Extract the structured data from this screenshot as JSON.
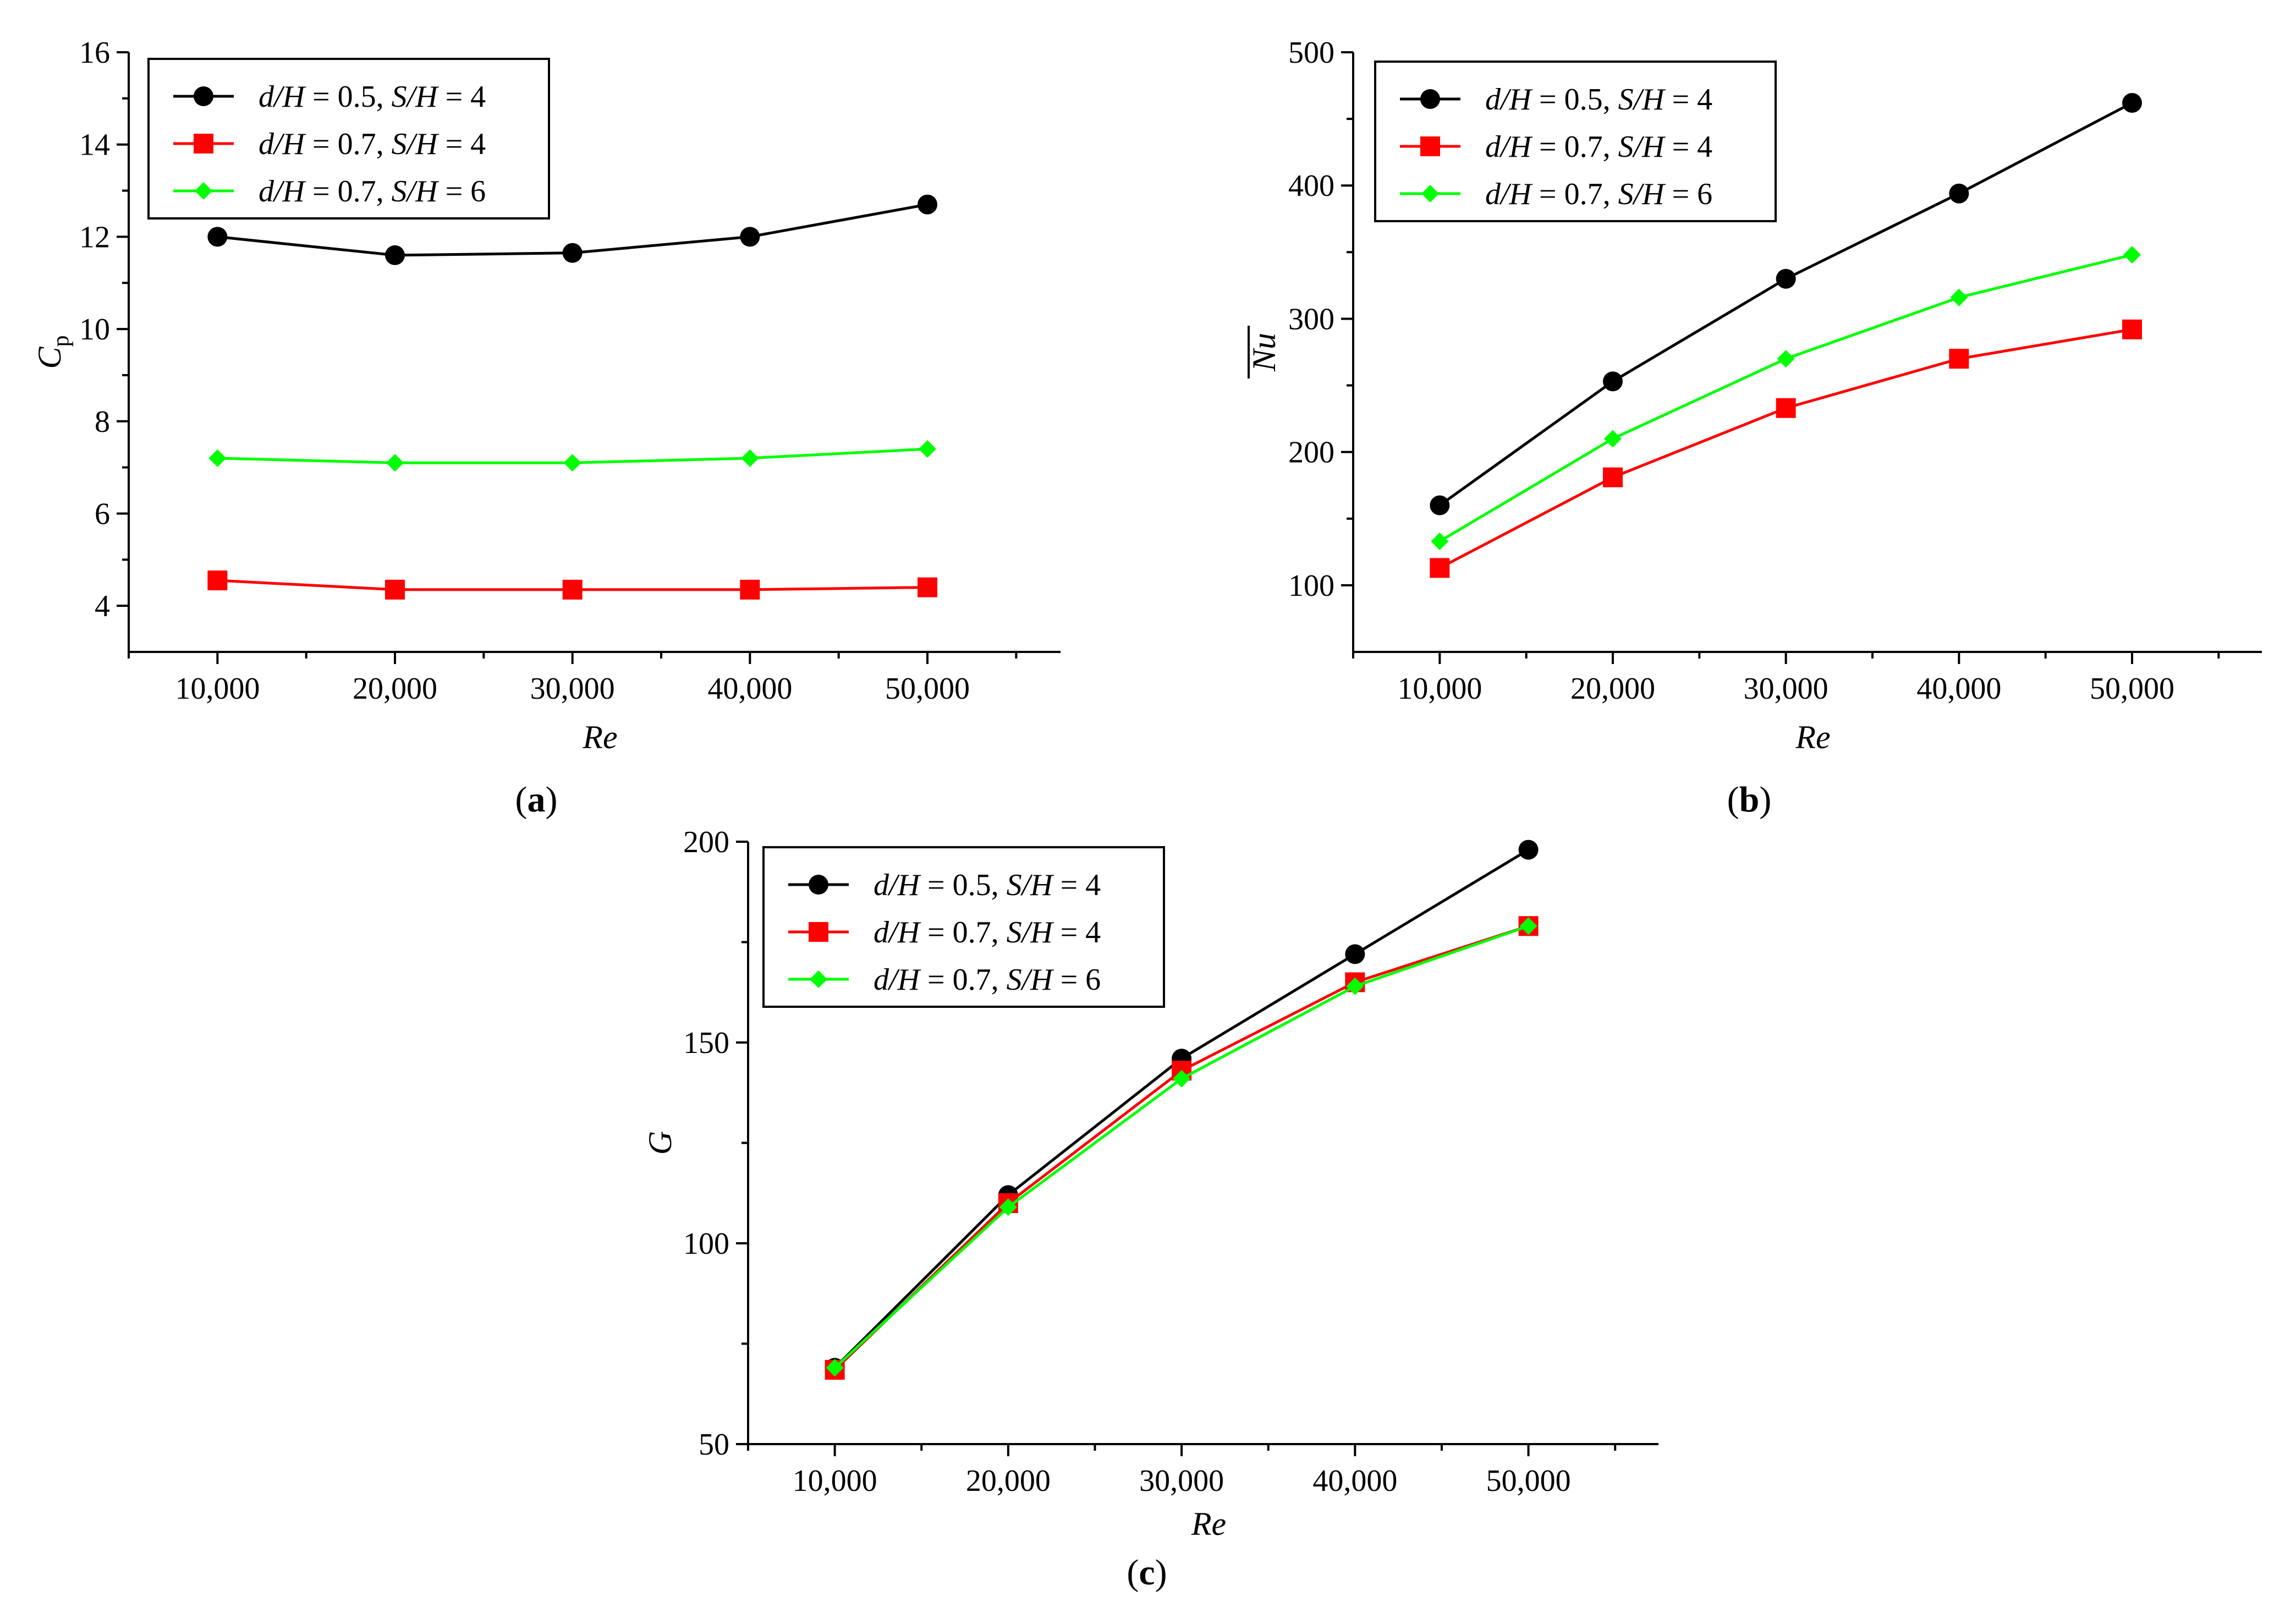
{
  "chart_data": [
    {
      "id": "a",
      "type": "line",
      "panel_label": "a",
      "categories": [
        "10,000",
        "20,000",
        "30,000",
        "40,000",
        "50,000"
      ],
      "x": [
        10000,
        20000,
        30000,
        40000,
        50000
      ],
      "xlabel": "Re",
      "ylabel_main": "C",
      "ylabel_sub": "p",
      "ylim": [
        3,
        16
      ],
      "yticks": [
        4,
        6,
        8,
        10,
        12,
        14,
        16
      ],
      "series": [
        {
          "name_parts": [
            "d/H",
            " = 0.5, ",
            "S/H",
            " = 4"
          ],
          "marker": "circle",
          "color": "#000000",
          "values": [
            12.0,
            11.6,
            11.65,
            12.0,
            12.7
          ]
        },
        {
          "name_parts": [
            "d/H",
            " = 0.7, ",
            "S/H",
            " = 4"
          ],
          "marker": "square",
          "color": "#ff0000",
          "values": [
            4.55,
            4.35,
            4.35,
            4.35,
            4.4
          ]
        },
        {
          "name_parts": [
            "d/H",
            " = 0.7, ",
            "S/H",
            " = 6"
          ],
          "marker": "diamond",
          "color": "#00ff00",
          "values": [
            7.2,
            7.1,
            7.1,
            7.2,
            7.4
          ]
        }
      ]
    },
    {
      "id": "b",
      "type": "line",
      "panel_label": "b",
      "categories": [
        "10,000",
        "20,000",
        "30,000",
        "40,000",
        "50,000"
      ],
      "x": [
        10000,
        20000,
        30000,
        40000,
        50000
      ],
      "xlabel": "Re",
      "ylabel_main": "Nu",
      "ylabel_overline": true,
      "ylim": [
        50,
        500
      ],
      "yticks": [
        100,
        200,
        300,
        400,
        500
      ],
      "series": [
        {
          "name_parts": [
            "d/H",
            " = 0.5, ",
            "S/H",
            " = 4"
          ],
          "marker": "circle",
          "color": "#000000",
          "values": [
            160,
            253,
            330,
            394,
            462
          ]
        },
        {
          "name_parts": [
            "d/H",
            " = 0.7, ",
            "S/H",
            " = 4"
          ],
          "marker": "square",
          "color": "#ff0000",
          "values": [
            113,
            181,
            233,
            270,
            292
          ]
        },
        {
          "name_parts": [
            "d/H",
            " = 0.7, ",
            "S/H",
            " = 6"
          ],
          "marker": "diamond",
          "color": "#00ff00",
          "values": [
            133,
            210,
            270,
            316,
            348
          ]
        }
      ]
    },
    {
      "id": "c",
      "type": "line",
      "panel_label": "c",
      "categories": [
        "10,000",
        "20,000",
        "30,000",
        "40,000",
        "50,000"
      ],
      "x": [
        10000,
        20000,
        30000,
        40000,
        50000
      ],
      "xlabel": "Re",
      "ylabel_main": "G",
      "ylim": [
        50,
        200
      ],
      "yticks": [
        50,
        100,
        150,
        200
      ],
      "series": [
        {
          "name_parts": [
            "d/H",
            " = 0.5, ",
            "S/H",
            " = 4"
          ],
          "marker": "circle",
          "color": "#000000",
          "values": [
            69,
            112,
            146,
            172,
            198
          ]
        },
        {
          "name_parts": [
            "d/H",
            " = 0.7, ",
            "S/H",
            " = 4"
          ],
          "marker": "square",
          "color": "#ff0000",
          "values": [
            68.5,
            110,
            143,
            165,
            179
          ]
        },
        {
          "name_parts": [
            "d/H",
            " = 0.7, ",
            "S/H",
            " = 6"
          ],
          "marker": "diamond",
          "color": "#00ff00",
          "values": [
            69,
            109,
            141,
            164,
            179
          ]
        }
      ]
    }
  ]
}
